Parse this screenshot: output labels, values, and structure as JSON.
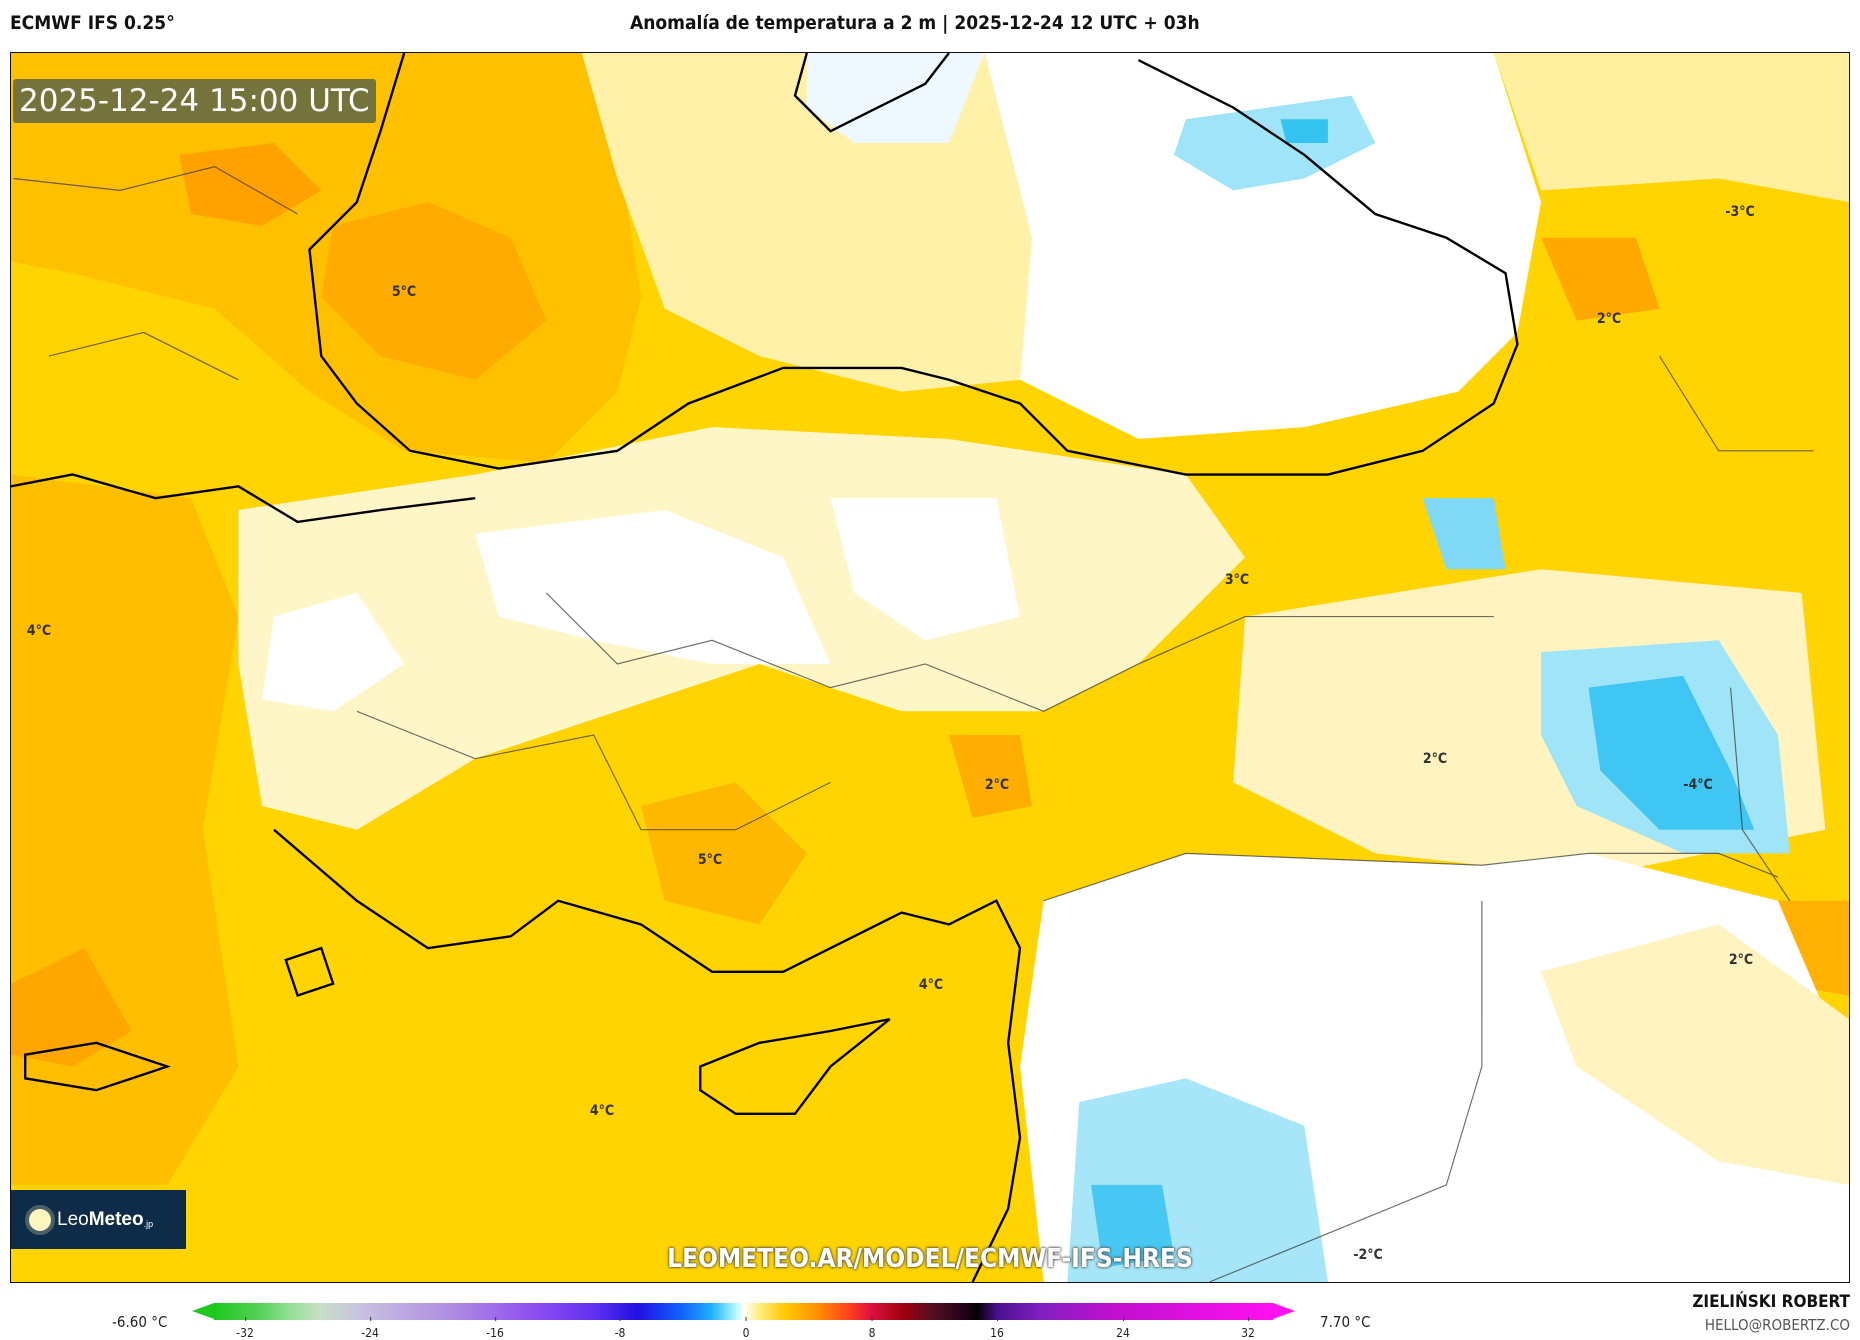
{
  "header": {
    "model": "ECMWF IFS 0.25°",
    "title": "Anomalía de temperatura a 2 m | 2025-12-24 12 UTC + 03h"
  },
  "map": {
    "valid_time": "2025-12-24 15:00 UTC",
    "contour_labels": [
      "5°C",
      "4°C",
      "5°C",
      "2°C",
      "4°C",
      "4°C",
      "3°C",
      "2°C",
      "-3°C",
      "2°C",
      "-4°C",
      "2°C",
      "-2°C"
    ],
    "watermark_url": "LEOMETEO.AR/MODEL/ECMWF-IFS-HRES",
    "logo": {
      "brand_light": "Leo",
      "brand_bold": "Meteo",
      "suffix": ".jp"
    }
  },
  "colorbar": {
    "min_label": "-6.60 °C",
    "max_label": "7.70 °C",
    "ticks": [
      "-32",
      "-24",
      "-16",
      "-8",
      "0",
      "8",
      "16",
      "24",
      "32"
    ],
    "colors": {
      "low": "#1ec81e",
      "zero": "#ffffff",
      "high": "#ff10f0"
    }
  },
  "footer": {
    "author": "ZIELIŃSKI ROBERT",
    "email": "HELLO@ROBERTZ.CO"
  }
}
